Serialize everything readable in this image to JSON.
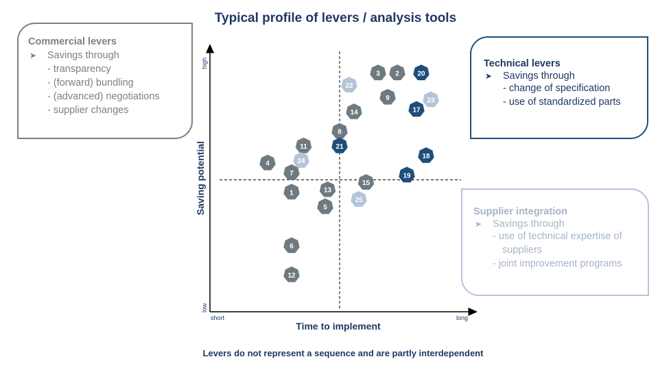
{
  "title": "Typical profile of levers / analysis tools",
  "footer": "Levers do not represent a sequence and are partly interdependent",
  "boxes": {
    "commercial": {
      "title": "Commercial levers",
      "subtitle": "Savings through",
      "items": [
        "transparency",
        "(forward) bundling",
        "(advanced) negotiations",
        "supplier changes"
      ]
    },
    "technical": {
      "title": "Technical levers",
      "subtitle": "Savings through",
      "items": [
        "change of specification",
        "use of standardized parts"
      ]
    },
    "supplier": {
      "title": "Supplier integration",
      "subtitle": "Savings through",
      "items": [
        "use of technical expertise of suppliers",
        "joint improvement programs"
      ]
    }
  },
  "colors": {
    "commercial": "#6f7a80",
    "technical": "#1f4e79",
    "supplier": "#b4c4d8",
    "title": "#1f3864"
  },
  "chart_data": {
    "type": "scatter",
    "xlabel": "Time to implement",
    "ylabel": "Saving potential",
    "x_ticks": [
      "short",
      "long"
    ],
    "y_ticks": [
      "low",
      "high"
    ],
    "xlim": [
      0,
      100
    ],
    "ylim": [
      0,
      100
    ],
    "midlines": {
      "x": 50,
      "y": 50
    },
    "points": [
      {
        "label": "1",
        "x": 30,
        "y": 45,
        "group": "commercial"
      },
      {
        "label": "2",
        "x": 74,
        "y": 94,
        "group": "commercial"
      },
      {
        "label": "3",
        "x": 66,
        "y": 94,
        "group": "commercial"
      },
      {
        "label": "4",
        "x": 20,
        "y": 57,
        "group": "commercial"
      },
      {
        "label": "5",
        "x": 44,
        "y": 39,
        "group": "commercial"
      },
      {
        "label": "6",
        "x": 30,
        "y": 23,
        "group": "commercial"
      },
      {
        "label": "7",
        "x": 30,
        "y": 53,
        "group": "commercial"
      },
      {
        "label": "8",
        "x": 50,
        "y": 70,
        "group": "commercial"
      },
      {
        "label": "9",
        "x": 70,
        "y": 84,
        "group": "commercial"
      },
      {
        "label": "11",
        "x": 35,
        "y": 64,
        "group": "commercial"
      },
      {
        "label": "12",
        "x": 30,
        "y": 11,
        "group": "commercial"
      },
      {
        "label": "13",
        "x": 45,
        "y": 46,
        "group": "commercial"
      },
      {
        "label": "14",
        "x": 56,
        "y": 78,
        "group": "commercial"
      },
      {
        "label": "15",
        "x": 61,
        "y": 49,
        "group": "commercial"
      },
      {
        "label": "17",
        "x": 82,
        "y": 79,
        "group": "technical"
      },
      {
        "label": "18",
        "x": 86,
        "y": 60,
        "group": "technical"
      },
      {
        "label": "19",
        "x": 78,
        "y": 52,
        "group": "technical"
      },
      {
        "label": "20",
        "x": 84,
        "y": 94,
        "group": "technical"
      },
      {
        "label": "21",
        "x": 50,
        "y": 64,
        "group": "technical"
      },
      {
        "label": "22",
        "x": 54,
        "y": 89,
        "group": "supplier"
      },
      {
        "label": "23",
        "x": 88,
        "y": 83,
        "group": "supplier"
      },
      {
        "label": "24",
        "x": 34,
        "y": 58,
        "group": "supplier"
      },
      {
        "label": "25",
        "x": 58,
        "y": 42,
        "group": "supplier"
      }
    ]
  }
}
